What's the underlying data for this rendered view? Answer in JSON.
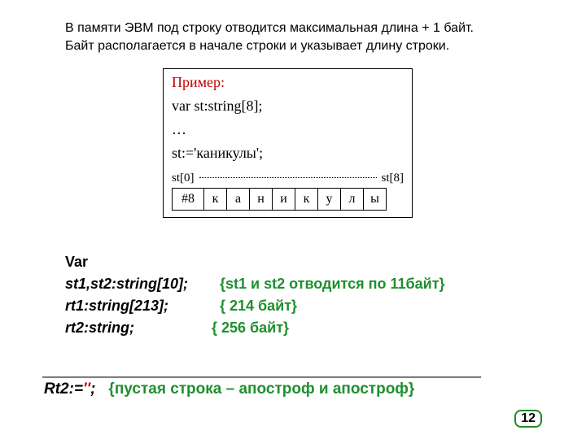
{
  "intro": {
    "line1": "В памяти ЭВМ под строку отводится максимальная длина + 1 байт.",
    "line2": "Байт располагается в начале строки и указывает длину строки."
  },
  "example": {
    "title": "Пример:",
    "decl": "var st:string[8];",
    "ellipsis": "…",
    "assign": "st:='каникулы';",
    "index_left": "st[0]",
    "index_right": "st[8]",
    "cells": [
      "#8",
      "к",
      "а",
      "н",
      "и",
      "к",
      "у",
      "л",
      "ы"
    ]
  },
  "code": {
    "var_kw": "Var",
    "rows": [
      {
        "decl": "st1,st2:string[10];",
        "comment": "{st1 и st2 отводится по 11байт}"
      },
      {
        "decl": "rt1:string[213];",
        "comment": "{ 214 байт}"
      },
      {
        "decl": "rt2:string;",
        "comment": "{ 256 байт}"
      }
    ]
  },
  "separator": "_________________________________________________________",
  "rt2": {
    "label": "Rt2:=",
    "quotes": "''",
    "semicolon": ";",
    "comment": "{пустая строка – апостроф и апостроф}"
  },
  "page": "12",
  "colors": {
    "red": "#c00000",
    "green": "#1f8f2f",
    "border_green": "#228b22",
    "black": "#000000",
    "bg": "#ffffff"
  },
  "fonts": {
    "body": "Arial",
    "example": "Times New Roman",
    "body_size_pt": 14,
    "example_size_pt": 14
  }
}
